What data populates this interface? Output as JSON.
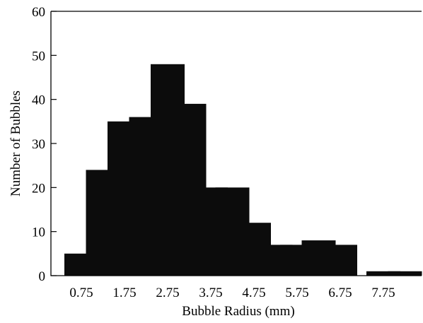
{
  "chart_data": {
    "type": "bar",
    "title": "",
    "xlabel": "Bubble Radius (mm)",
    "ylabel": "Number of Bubbles",
    "ylim": [
      0,
      60
    ],
    "yticks": [
      0,
      10,
      20,
      30,
      40,
      50,
      60
    ],
    "xticks": [
      "0.75",
      "1.75",
      "2.75",
      "3.75",
      "4.75",
      "5.75",
      "6.75",
      "7.75"
    ],
    "categories": [
      "0.75",
      "1.25",
      "1.75",
      "2.25",
      "2.75",
      "3.25",
      "3.75",
      "4.25",
      "4.75",
      "5.25",
      "5.75",
      "6.25",
      "6.75",
      "7.25",
      "7.75",
      "8.25"
    ],
    "values": [
      5,
      24,
      35,
      36,
      48,
      39,
      20,
      20,
      12,
      7,
      7,
      8,
      7,
      0,
      1,
      1
    ],
    "grid": false,
    "bar_color": "#0c0c0c"
  }
}
